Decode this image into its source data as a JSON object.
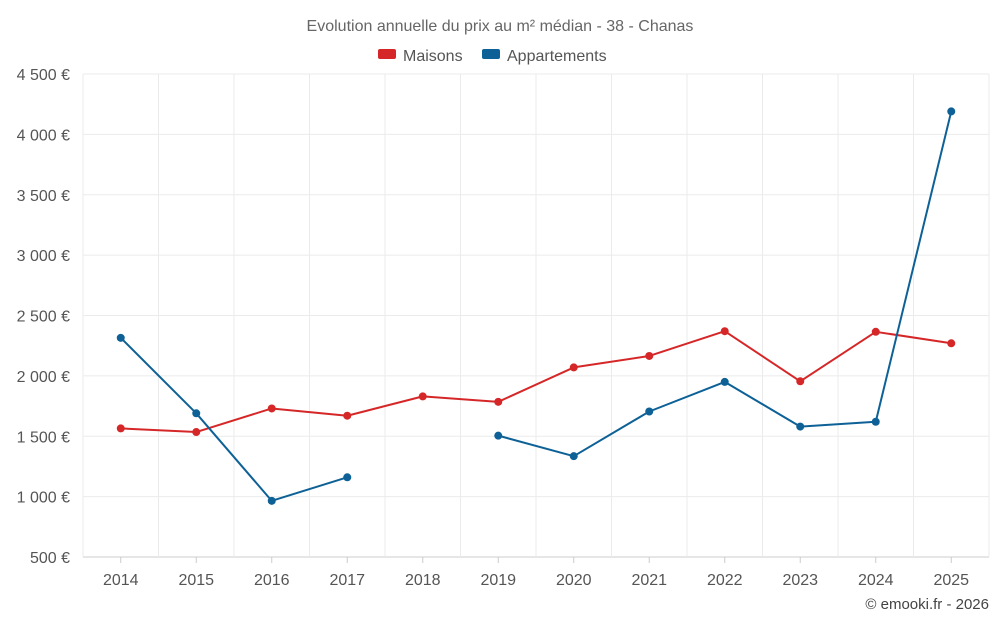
{
  "chart_data": {
    "type": "line",
    "title": "Evolution annuelle du prix au m² médian - 38 - Chanas",
    "xlabel": "",
    "ylabel": "",
    "categories": [
      "2014",
      "2015",
      "2016",
      "2017",
      "2018",
      "2019",
      "2020",
      "2021",
      "2022",
      "2023",
      "2024",
      "2025"
    ],
    "y_ticks": [
      {
        "value": 500,
        "label": "500 €"
      },
      {
        "value": 1000,
        "label": "1 000 €"
      },
      {
        "value": 1500,
        "label": "1 500 €"
      },
      {
        "value": 2000,
        "label": "2 000 €"
      },
      {
        "value": 2500,
        "label": "2 500 €"
      },
      {
        "value": 3000,
        "label": "3 000 €"
      },
      {
        "value": 3500,
        "label": "3 500 €"
      },
      {
        "value": 4000,
        "label": "4 000 €"
      },
      {
        "value": 4500,
        "label": "4 500 €"
      }
    ],
    "ylim": [
      500,
      4500
    ],
    "grid": true,
    "legend_position": "top-center",
    "series": [
      {
        "name": "Maisons",
        "color": "#d62728",
        "values": [
          1565,
          1535,
          1730,
          1670,
          1830,
          1785,
          2070,
          2165,
          2370,
          1955,
          2365,
          2270
        ]
      },
      {
        "name": "Appartements",
        "color": "#0d6196",
        "values": [
          2315,
          1690,
          965,
          1160,
          null,
          1505,
          1335,
          1705,
          1950,
          1580,
          1620,
          4190
        ]
      }
    ],
    "credit": "© emooki.fr - 2026"
  }
}
